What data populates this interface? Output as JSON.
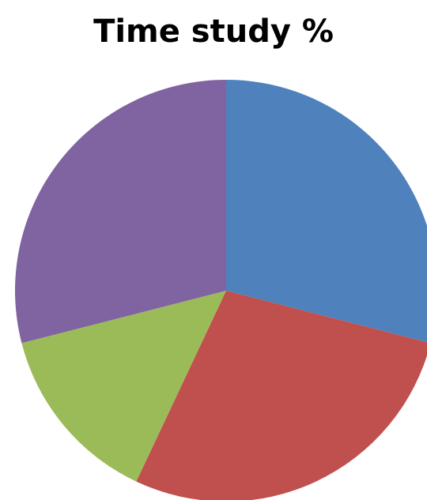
{
  "chart_data": {
    "type": "pie",
    "title": "Time study %",
    "start_angle_deg": 0,
    "direction": "clockwise",
    "slices": [
      {
        "value": 29,
        "color": "#4F81BD"
      },
      {
        "value": 28,
        "color": "#C0504D"
      },
      {
        "value": 14,
        "color": "#9BBB59"
      },
      {
        "value": 29,
        "color": "#8064A2"
      }
    ],
    "legend": "none",
    "data_labels": "none"
  }
}
